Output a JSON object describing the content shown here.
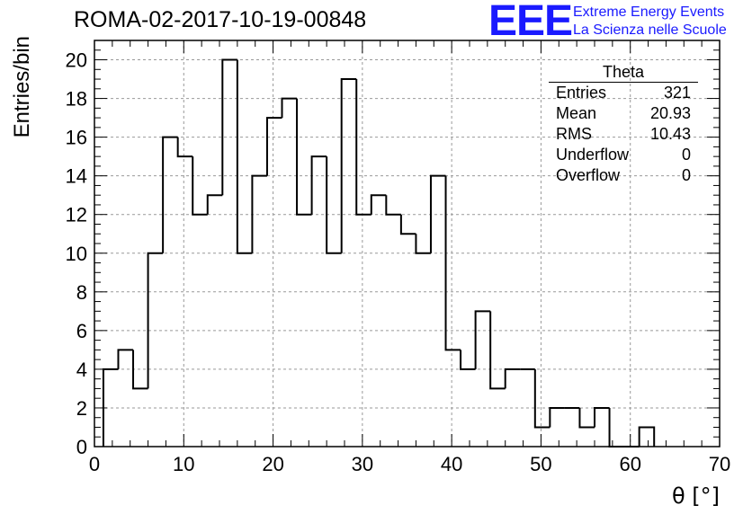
{
  "header": {
    "title": "ROMA-02-2017-10-19-00848",
    "logo": "EEE",
    "logo_line1": "Extreme Energy Events",
    "logo_line2": "La Scienza nelle Scuole"
  },
  "stats": {
    "title": "Theta",
    "rows": [
      {
        "label": "Entries",
        "value": "321"
      },
      {
        "label": "Mean",
        "value": "20.93"
      },
      {
        "label": "RMS",
        "value": "10.43"
      },
      {
        "label": "Underflow",
        "value": "0"
      },
      {
        "label": "Overflow",
        "value": "0"
      }
    ]
  },
  "colors": {
    "line": "#000000",
    "grid": "#999999",
    "logo": "#1a1aff"
  },
  "chart_data": {
    "type": "bar",
    "subtype": "step-histogram",
    "title": "ROMA-02-2017-10-19-00848",
    "xlabel": "θ [°]",
    "ylabel": "Entries/bin",
    "xlim": [
      0,
      70
    ],
    "ylim": [
      0,
      21
    ],
    "bin_width": 1.6666667,
    "bin_start": 1.0,
    "x_ticks": [
      0,
      10,
      20,
      30,
      40,
      50,
      60,
      70
    ],
    "y_ticks": [
      0,
      2,
      4,
      6,
      8,
      10,
      12,
      14,
      16,
      18,
      20
    ],
    "grid": true,
    "values": [
      4,
      5,
      3,
      10,
      16,
      15,
      12,
      13,
      20,
      10,
      14,
      17,
      18,
      12,
      15,
      10,
      19,
      12,
      13,
      12,
      11,
      10,
      14,
      5,
      4,
      7,
      3,
      4,
      4,
      1,
      2,
      2,
      1,
      2,
      0,
      0,
      1
    ]
  }
}
